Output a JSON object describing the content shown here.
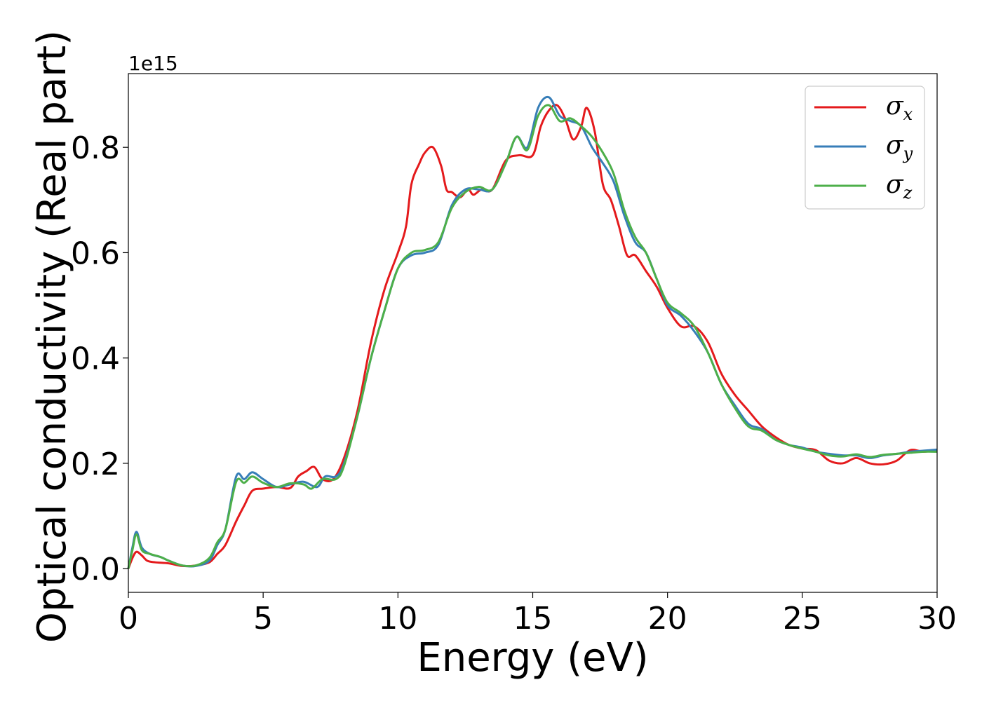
{
  "chart_data": {
    "type": "line",
    "title": "",
    "xlabel": "Energy (eV)",
    "ylabel": "Optical conductivity (Real part)",
    "y_offset_label": "1e15",
    "xlim": [
      0,
      30
    ],
    "ylim": [
      -0.045,
      0.94
    ],
    "xticks": [
      "0",
      "5",
      "10",
      "15",
      "20",
      "25",
      "30"
    ],
    "yticks": [
      "0.0",
      "0.2",
      "0.4",
      "0.6",
      "0.8"
    ],
    "grid": false,
    "legend_position": "top-right",
    "series": [
      {
        "name": "σx",
        "symbol": "σ",
        "subscript": "x",
        "color": "#e41a1c",
        "points": [
          [
            0,
            0
          ],
          [
            0.15,
            0.02
          ],
          [
            0.3,
            0.032
          ],
          [
            0.5,
            0.025
          ],
          [
            0.7,
            0.015
          ],
          [
            1.0,
            0.012
          ],
          [
            1.5,
            0.01
          ],
          [
            2.0,
            0.005
          ],
          [
            2.5,
            0.006
          ],
          [
            3.0,
            0.012
          ],
          [
            3.3,
            0.028
          ],
          [
            3.6,
            0.045
          ],
          [
            4.0,
            0.09
          ],
          [
            4.3,
            0.12
          ],
          [
            4.6,
            0.148
          ],
          [
            5.0,
            0.152
          ],
          [
            5.5,
            0.155
          ],
          [
            6.0,
            0.153
          ],
          [
            6.3,
            0.175
          ],
          [
            6.6,
            0.185
          ],
          [
            6.9,
            0.193
          ],
          [
            7.2,
            0.17
          ],
          [
            7.6,
            0.17
          ],
          [
            8.0,
            0.21
          ],
          [
            8.5,
            0.3
          ],
          [
            9.0,
            0.43
          ],
          [
            9.5,
            0.53
          ],
          [
            10.0,
            0.6
          ],
          [
            10.3,
            0.65
          ],
          [
            10.5,
            0.73
          ],
          [
            10.8,
            0.77
          ],
          [
            11.0,
            0.79
          ],
          [
            11.3,
            0.8
          ],
          [
            11.6,
            0.765
          ],
          [
            11.8,
            0.72
          ],
          [
            12.0,
            0.715
          ],
          [
            12.3,
            0.705
          ],
          [
            12.6,
            0.72
          ],
          [
            12.8,
            0.71
          ],
          [
            13.1,
            0.72
          ],
          [
            13.5,
            0.72
          ],
          [
            14.0,
            0.775
          ],
          [
            14.5,
            0.785
          ],
          [
            15.0,
            0.785
          ],
          [
            15.3,
            0.84
          ],
          [
            15.6,
            0.87
          ],
          [
            15.9,
            0.88
          ],
          [
            16.2,
            0.855
          ],
          [
            16.5,
            0.815
          ],
          [
            16.8,
            0.84
          ],
          [
            17.0,
            0.875
          ],
          [
            17.3,
            0.83
          ],
          [
            17.6,
            0.73
          ],
          [
            17.9,
            0.7
          ],
          [
            18.2,
            0.65
          ],
          [
            18.5,
            0.595
          ],
          [
            18.8,
            0.595
          ],
          [
            19.2,
            0.565
          ],
          [
            19.6,
            0.535
          ],
          [
            20.0,
            0.495
          ],
          [
            20.5,
            0.46
          ],
          [
            21.0,
            0.46
          ],
          [
            21.5,
            0.43
          ],
          [
            22.0,
            0.37
          ],
          [
            22.5,
            0.33
          ],
          [
            23.0,
            0.3
          ],
          [
            23.5,
            0.27
          ],
          [
            24.0,
            0.25
          ],
          [
            24.5,
            0.235
          ],
          [
            25.0,
            0.228
          ],
          [
            25.5,
            0.225
          ],
          [
            26.0,
            0.205
          ],
          [
            26.5,
            0.2
          ],
          [
            27.0,
            0.21
          ],
          [
            27.5,
            0.2
          ],
          [
            28.0,
            0.198
          ],
          [
            28.5,
            0.205
          ],
          [
            29.0,
            0.225
          ],
          [
            29.5,
            0.222
          ],
          [
            30.0,
            0.226
          ]
        ]
      },
      {
        "name": "σy",
        "symbol": "σ",
        "subscript": "y",
        "color": "#377eb8",
        "points": [
          [
            0,
            0
          ],
          [
            0.15,
            0.04
          ],
          [
            0.3,
            0.07
          ],
          [
            0.5,
            0.04
          ],
          [
            0.8,
            0.028
          ],
          [
            1.2,
            0.022
          ],
          [
            1.5,
            0.015
          ],
          [
            2.0,
            0.006
          ],
          [
            2.5,
            0.005
          ],
          [
            3.0,
            0.015
          ],
          [
            3.3,
            0.045
          ],
          [
            3.6,
            0.075
          ],
          [
            4.0,
            0.175
          ],
          [
            4.3,
            0.17
          ],
          [
            4.6,
            0.183
          ],
          [
            5.0,
            0.17
          ],
          [
            5.5,
            0.155
          ],
          [
            6.0,
            0.16
          ],
          [
            6.5,
            0.165
          ],
          [
            7.0,
            0.155
          ],
          [
            7.3,
            0.175
          ],
          [
            7.7,
            0.175
          ],
          [
            8.0,
            0.2
          ],
          [
            8.5,
            0.29
          ],
          [
            9.0,
            0.4
          ],
          [
            9.5,
            0.49
          ],
          [
            10.0,
            0.57
          ],
          [
            10.5,
            0.595
          ],
          [
            11.0,
            0.6
          ],
          [
            11.5,
            0.615
          ],
          [
            12.0,
            0.69
          ],
          [
            12.5,
            0.72
          ],
          [
            13.0,
            0.72
          ],
          [
            13.5,
            0.72
          ],
          [
            14.0,
            0.77
          ],
          [
            14.4,
            0.82
          ],
          [
            14.8,
            0.8
          ],
          [
            15.2,
            0.875
          ],
          [
            15.6,
            0.895
          ],
          [
            16.0,
            0.86
          ],
          [
            16.4,
            0.85
          ],
          [
            16.8,
            0.84
          ],
          [
            17.2,
            0.8
          ],
          [
            17.6,
            0.77
          ],
          [
            18.0,
            0.735
          ],
          [
            18.4,
            0.67
          ],
          [
            18.8,
            0.62
          ],
          [
            19.2,
            0.6
          ],
          [
            19.6,
            0.55
          ],
          [
            20.0,
            0.5
          ],
          [
            20.5,
            0.48
          ],
          [
            21.0,
            0.45
          ],
          [
            21.5,
            0.41
          ],
          [
            22.0,
            0.35
          ],
          [
            22.5,
            0.31
          ],
          [
            23.0,
            0.275
          ],
          [
            23.5,
            0.265
          ],
          [
            24.0,
            0.245
          ],
          [
            24.5,
            0.235
          ],
          [
            25.0,
            0.23
          ],
          [
            25.5,
            0.222
          ],
          [
            26.0,
            0.218
          ],
          [
            26.5,
            0.215
          ],
          [
            27.0,
            0.215
          ],
          [
            27.5,
            0.21
          ],
          [
            28.0,
            0.215
          ],
          [
            28.5,
            0.218
          ],
          [
            29.0,
            0.222
          ],
          [
            29.5,
            0.224
          ],
          [
            30.0,
            0.226
          ]
        ]
      },
      {
        "name": "σz",
        "symbol": "σ",
        "subscript": "z",
        "color": "#4daf4a",
        "points": [
          [
            0,
            0
          ],
          [
            0.15,
            0.035
          ],
          [
            0.3,
            0.065
          ],
          [
            0.5,
            0.035
          ],
          [
            0.8,
            0.028
          ],
          [
            1.2,
            0.022
          ],
          [
            1.5,
            0.015
          ],
          [
            2.0,
            0.006
          ],
          [
            2.5,
            0.006
          ],
          [
            3.0,
            0.02
          ],
          [
            3.3,
            0.05
          ],
          [
            3.6,
            0.075
          ],
          [
            4.0,
            0.165
          ],
          [
            4.3,
            0.163
          ],
          [
            4.6,
            0.175
          ],
          [
            5.0,
            0.163
          ],
          [
            5.5,
            0.155
          ],
          [
            6.0,
            0.162
          ],
          [
            6.5,
            0.16
          ],
          [
            6.8,
            0.152
          ],
          [
            7.2,
            0.17
          ],
          [
            7.7,
            0.17
          ],
          [
            8.0,
            0.195
          ],
          [
            8.5,
            0.29
          ],
          [
            9.0,
            0.4
          ],
          [
            9.5,
            0.49
          ],
          [
            10.0,
            0.57
          ],
          [
            10.5,
            0.6
          ],
          [
            11.0,
            0.605
          ],
          [
            11.5,
            0.62
          ],
          [
            12.0,
            0.685
          ],
          [
            12.5,
            0.715
          ],
          [
            13.0,
            0.725
          ],
          [
            13.5,
            0.72
          ],
          [
            14.0,
            0.77
          ],
          [
            14.4,
            0.82
          ],
          [
            14.8,
            0.795
          ],
          [
            15.2,
            0.86
          ],
          [
            15.6,
            0.88
          ],
          [
            16.0,
            0.85
          ],
          [
            16.4,
            0.855
          ],
          [
            16.8,
            0.84
          ],
          [
            17.2,
            0.82
          ],
          [
            17.6,
            0.79
          ],
          [
            18.0,
            0.75
          ],
          [
            18.4,
            0.68
          ],
          [
            18.8,
            0.63
          ],
          [
            19.2,
            0.6
          ],
          [
            19.6,
            0.55
          ],
          [
            20.0,
            0.505
          ],
          [
            20.5,
            0.485
          ],
          [
            21.0,
            0.46
          ],
          [
            21.5,
            0.41
          ],
          [
            22.0,
            0.35
          ],
          [
            22.5,
            0.305
          ],
          [
            23.0,
            0.27
          ],
          [
            23.5,
            0.262
          ],
          [
            24.0,
            0.245
          ],
          [
            24.5,
            0.235
          ],
          [
            25.0,
            0.228
          ],
          [
            25.5,
            0.222
          ],
          [
            26.0,
            0.215
          ],
          [
            26.5,
            0.213
          ],
          [
            27.0,
            0.217
          ],
          [
            27.5,
            0.212
          ],
          [
            28.0,
            0.216
          ],
          [
            28.5,
            0.218
          ],
          [
            29.0,
            0.22
          ],
          [
            29.5,
            0.222
          ],
          [
            30.0,
            0.222
          ]
        ]
      }
    ]
  }
}
